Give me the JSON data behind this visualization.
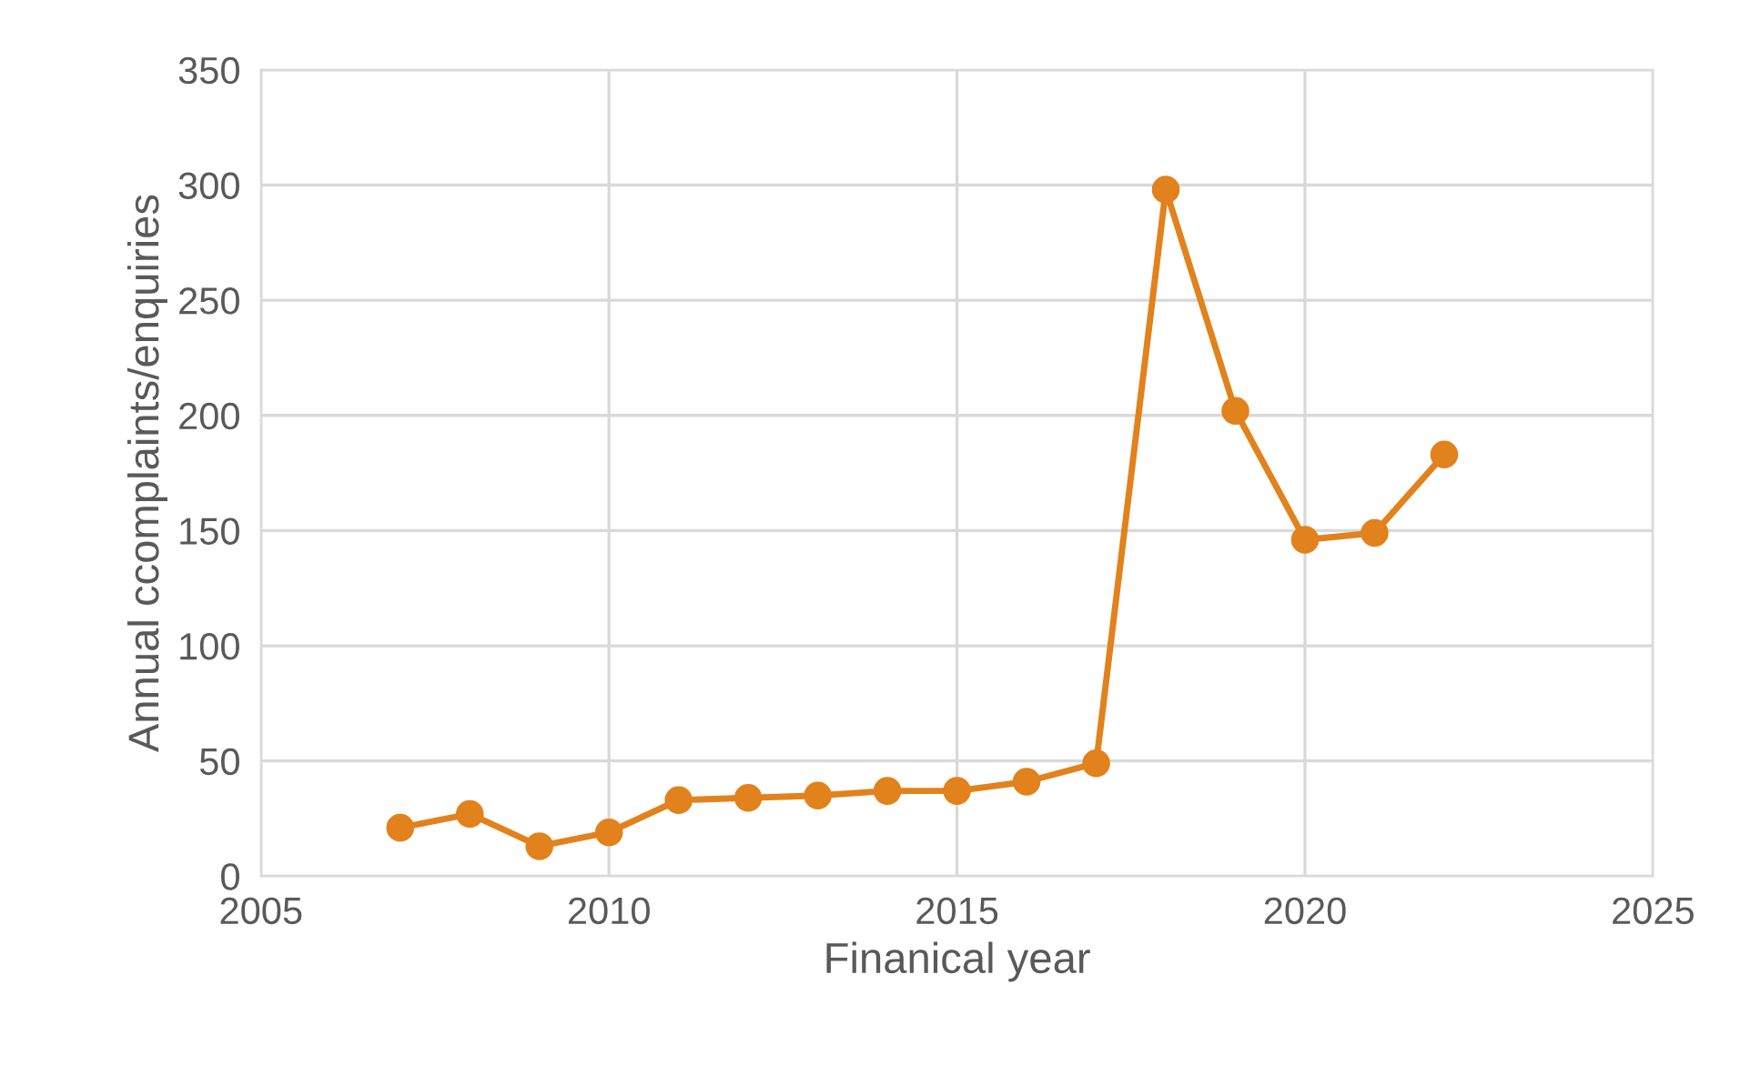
{
  "chart_data": {
    "type": "line",
    "xlabel": "Finanical year",
    "ylabel": "Annual ccomplaints/enquiries",
    "x": [
      2007,
      2008,
      2009,
      2010,
      2011,
      2012,
      2013,
      2014,
      2015,
      2016,
      2017,
      2018,
      2019,
      2020,
      2021,
      2022
    ],
    "series": [
      {
        "color": "#e2821c",
        "values": [
          21,
          27,
          13,
          19,
          33,
          34,
          35,
          37,
          37,
          41,
          49,
          298,
          202,
          146,
          149,
          183
        ]
      }
    ],
    "xlim": [
      2005,
      2025
    ],
    "xticks": [
      2005,
      2010,
      2015,
      2020,
      2025
    ],
    "ylim": [
      0,
      350
    ],
    "yticks": [
      0,
      50,
      100,
      150,
      200,
      250,
      300,
      350
    ],
    "grid": true,
    "marker": "circle",
    "line_style": "solid",
    "legend": false
  }
}
